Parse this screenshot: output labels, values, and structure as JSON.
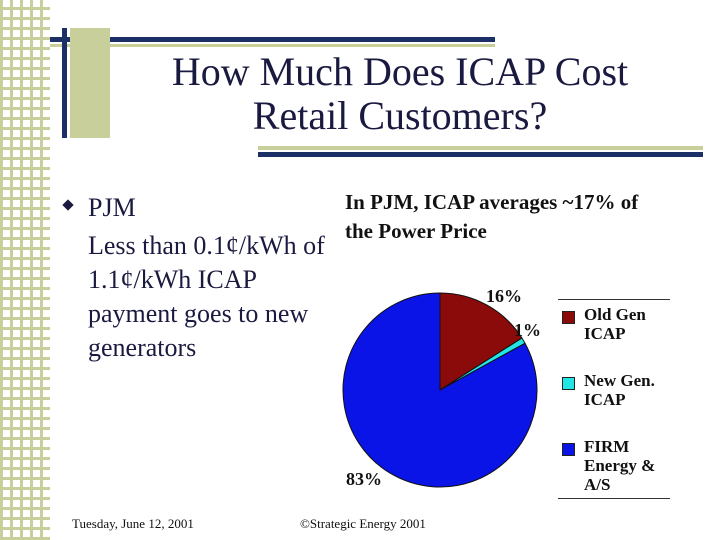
{
  "slide": {
    "title_line1": "How Much Does ICAP Cost",
    "title_line2": "Retail Customers?",
    "bullet_head": "PJM",
    "bullet_body": "Less than 0.1¢/kWh of 1.1¢/kWh ICAP payment goes to new generators",
    "footer_date": "Tuesday, June 12, 2001",
    "footer_copyright": "©Strategic Energy 2001"
  },
  "colors": {
    "navy": "#1c2f66",
    "olive": "#c9cf9a"
  },
  "chart_data": {
    "type": "pie",
    "title": "In PJM, ICAP averages ~17% of the Power Price",
    "slices": [
      {
        "name": "Old Gen ICAP",
        "value": 16,
        "label": "16%",
        "color": "#8b0a0a"
      },
      {
        "name": "New Gen. ICAP",
        "value": 1,
        "label": "1%",
        "color": "#22e6e6"
      },
      {
        "name": "FIRM Energy & A/S",
        "value": 83,
        "label": "83%",
        "color": "#0a14e6"
      }
    ],
    "legend": {
      "position": "right",
      "items": [
        "Old Gen ICAP",
        "New Gen. ICAP",
        "FIRM Energy & A/S"
      ]
    }
  }
}
